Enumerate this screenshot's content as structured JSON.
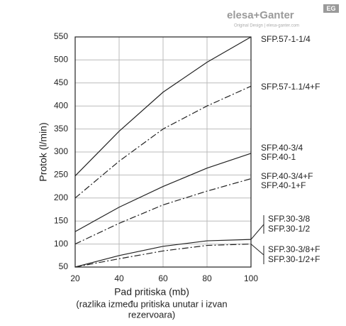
{
  "header": {
    "brand": "elesa+Ganter",
    "badge": "EG",
    "tagline": "Original Design | elesa-ganter.com"
  },
  "chart_data": {
    "type": "line",
    "x_label": "Pad pritiska (mb)",
    "x_label_note": [
      "(razlika između pritiska unutar i izvan",
      "rezervoara)"
    ],
    "y_label": "Protok (l/min)",
    "x": [
      20,
      40,
      60,
      80,
      100
    ],
    "xlim": [
      20,
      100
    ],
    "xticks": [
      20,
      40,
      60,
      80,
      100
    ],
    "ylim": [
      50,
      550
    ],
    "yticks": [
      50,
      100,
      150,
      200,
      250,
      300,
      350,
      400,
      450,
      500,
      550
    ],
    "grid": true,
    "series": [
      {
        "labels": [
          "SFP.57-1-1/4"
        ],
        "style": "solid",
        "color": "#222222",
        "values": [
          248,
          345,
          430,
          495,
          550
        ]
      },
      {
        "labels": [
          "SFP.57-1.1/4+F"
        ],
        "style": "dashdot",
        "color": "#222222",
        "values": [
          200,
          280,
          350,
          400,
          443
        ]
      },
      {
        "labels": [
          "SFP.40-3/4",
          "SFP.40-1"
        ],
        "style": "solid",
        "color": "#222222",
        "values": [
          127,
          180,
          225,
          265,
          297
        ]
      },
      {
        "labels": [
          "SFP.40-3/4+F",
          "SFP.40-1+F"
        ],
        "style": "dashdot",
        "color": "#222222",
        "values": [
          100,
          145,
          185,
          215,
          242
        ]
      },
      {
        "labels": [
          "SFP.30-3/8",
          "SFP.30-1/2"
        ],
        "style": "solid",
        "color": "#222222",
        "values": [
          50,
          75,
          95,
          107,
          110
        ]
      },
      {
        "labels": [
          "SFP.30-3/8+F",
          "SFP.30-1/2+F"
        ],
        "style": "dashdot",
        "color": "#222222",
        "values": [
          50,
          68,
          85,
          97,
          100
        ]
      }
    ]
  }
}
